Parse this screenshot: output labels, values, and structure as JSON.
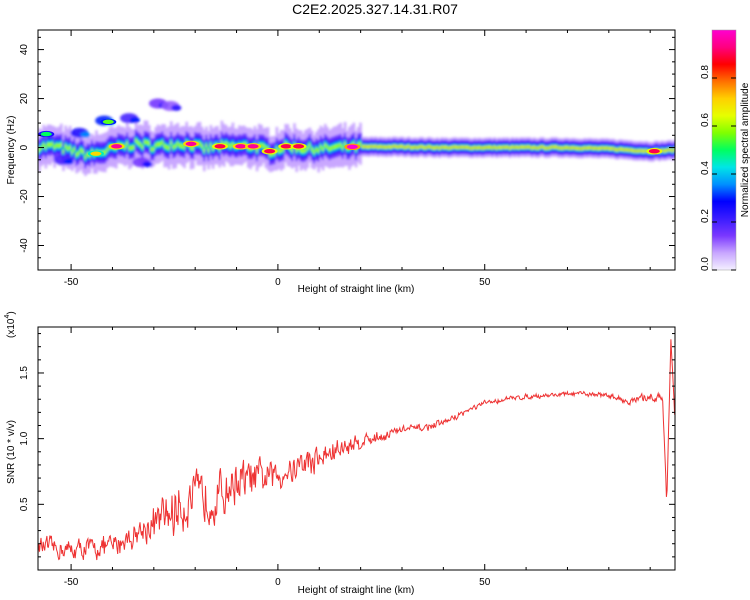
{
  "figure": {
    "title": "C2E2.2025.327.14.31.R07"
  },
  "chart_data": [
    {
      "type": "heatmap",
      "xlabel": "Height of straight line (km)",
      "ylabel": "Frequency (Hz)",
      "xlim": [
        -58,
        96
      ],
      "ylim": [
        -50,
        48
      ],
      "xticks": [
        -50,
        0,
        50
      ],
      "yticks": [
        -40,
        -20,
        0,
        20,
        40
      ],
      "colorbar": {
        "label": "Normalized spectral amplitude",
        "range": [
          0.0,
          1.0
        ],
        "ticks": [
          0.0,
          0.2,
          0.4,
          0.6,
          0.8
        ],
        "colors": [
          "#f4f0ff",
          "#c8a6ff",
          "#7a38ff",
          "#3a1cff",
          "#0000ff",
          "#0090ff",
          "#00e6e6",
          "#00ff60",
          "#80ff00",
          "#e6ff00",
          "#ffd000",
          "#ff7000",
          "#ff0000",
          "#ff0080",
          "#ff00d0"
        ]
      },
      "ridge": [
        {
          "x": -58,
          "y": 0.5
        },
        {
          "x": -54,
          "y": 0.5
        },
        {
          "x": -50,
          "y": -1.5
        },
        {
          "x": -46,
          "y": -3
        },
        {
          "x": -42,
          "y": -1.5
        },
        {
          "x": -38,
          "y": 0.5
        },
        {
          "x": -34,
          "y": 1.5
        },
        {
          "x": -30,
          "y": 0.5
        },
        {
          "x": -26,
          "y": 1.5
        },
        {
          "x": -22,
          "y": 1.5
        },
        {
          "x": -18,
          "y": -0.5
        },
        {
          "x": -14,
          "y": 0.5
        },
        {
          "x": -10,
          "y": 0.5
        },
        {
          "x": -6,
          "y": 0.5
        },
        {
          "x": -2,
          "y": -1.5
        },
        {
          "x": 2,
          "y": 0.5
        },
        {
          "x": 6,
          "y": -0.5
        },
        {
          "x": 10,
          "y": -0.5
        },
        {
          "x": 14,
          "y": 0.0
        },
        {
          "x": 20,
          "y": 0.3
        },
        {
          "x": 30,
          "y": 0.3
        },
        {
          "x": 40,
          "y": 0.0
        },
        {
          "x": 50,
          "y": 0.0
        },
        {
          "x": 60,
          "y": 0.0
        },
        {
          "x": 70,
          "y": 0.0
        },
        {
          "x": 80,
          "y": -0.5
        },
        {
          "x": 90,
          "y": -1.5
        },
        {
          "x": 96,
          "y": -1.0
        }
      ],
      "hotspots": [
        {
          "x": -39,
          "y": 0.5,
          "amp": 0.95
        },
        {
          "x": -21,
          "y": 1.5,
          "amp": 0.95
        },
        {
          "x": -14,
          "y": 0.5,
          "amp": 0.9
        },
        {
          "x": -9,
          "y": 0.5,
          "amp": 0.95
        },
        {
          "x": -6,
          "y": 0.5,
          "amp": 0.95
        },
        {
          "x": -2,
          "y": -1.5,
          "amp": 0.9
        },
        {
          "x": 2,
          "y": 0.5,
          "amp": 0.9
        },
        {
          "x": 5,
          "y": 0.5,
          "amp": 0.9
        },
        {
          "x": 18,
          "y": 0.3,
          "amp": 1.0
        },
        {
          "x": 91,
          "y": -1.5,
          "amp": 0.9
        },
        {
          "x": -44,
          "y": -2.5,
          "amp": 0.7
        },
        {
          "x": -41,
          "y": 10.5,
          "amp": 0.55
        },
        {
          "x": -56,
          "y": 5.5,
          "amp": 0.5
        }
      ],
      "scatter_patches": [
        {
          "x": -42,
          "y": 11,
          "amp": 0.3
        },
        {
          "x": -36,
          "y": 12,
          "amp": 0.2
        },
        {
          "x": -29,
          "y": 18,
          "amp": 0.15
        },
        {
          "x": -26,
          "y": 17,
          "amp": 0.12
        },
        {
          "x": -48,
          "y": 6,
          "amp": 0.25
        },
        {
          "x": -52,
          "y": -5,
          "amp": 0.2
        },
        {
          "x": -33,
          "y": -6,
          "amp": 0.15
        }
      ]
    },
    {
      "type": "line",
      "xlabel": "Height of straight line (km)",
      "ylabel": "SNR (10 * v/v)",
      "yscale_label": "(x10^4)",
      "xlim": [
        -58,
        96
      ],
      "ylim": [
        0.0,
        1.85
      ],
      "xticks": [
        -50,
        0,
        50
      ],
      "yticks": [
        0.5,
        1.0,
        1.5
      ],
      "series": [
        {
          "name": "SNR",
          "color": "#ee3333",
          "trend": [
            {
              "x": -58,
              "y": 0.18
            },
            {
              "x": -50,
              "y": 0.15
            },
            {
              "x": -40,
              "y": 0.18
            },
            {
              "x": -30,
              "y": 0.35
            },
            {
              "x": -25,
              "y": 0.45
            },
            {
              "x": -20,
              "y": 0.55
            },
            {
              "x": -15,
              "y": 0.55
            },
            {
              "x": -10,
              "y": 0.68
            },
            {
              "x": 0,
              "y": 0.72
            },
            {
              "x": 5,
              "y": 0.8
            },
            {
              "x": 10,
              "y": 0.85
            },
            {
              "x": 15,
              "y": 0.92
            },
            {
              "x": 20,
              "y": 0.98
            },
            {
              "x": 25,
              "y": 1.02
            },
            {
              "x": 30,
              "y": 1.07
            },
            {
              "x": 35,
              "y": 1.08
            },
            {
              "x": 40,
              "y": 1.12
            },
            {
              "x": 45,
              "y": 1.2
            },
            {
              "x": 50,
              "y": 1.27
            },
            {
              "x": 55,
              "y": 1.3
            },
            {
              "x": 60,
              "y": 1.32
            },
            {
              "x": 65,
              "y": 1.33
            },
            {
              "x": 70,
              "y": 1.34
            },
            {
              "x": 75,
              "y": 1.34
            },
            {
              "x": 80,
              "y": 1.33
            },
            {
              "x": 85,
              "y": 1.28
            },
            {
              "x": 90,
              "y": 1.32
            },
            {
              "x": 93,
              "y": 1.3
            },
            {
              "x": 94,
              "y": 0.52
            },
            {
              "x": 95,
              "y": 1.75
            },
            {
              "x": 96,
              "y": 1.15
            }
          ],
          "noise": [
            {
              "x": -58,
              "amp": 0.12
            },
            {
              "x": -35,
              "amp": 0.15
            },
            {
              "x": -25,
              "amp": 0.3
            },
            {
              "x": -15,
              "amp": 0.3
            },
            {
              "x": 0,
              "amp": 0.18
            },
            {
              "x": 10,
              "amp": 0.18
            },
            {
              "x": 20,
              "amp": 0.1
            },
            {
              "x": 30,
              "amp": 0.05
            },
            {
              "x": 50,
              "amp": 0.03
            },
            {
              "x": 80,
              "amp": 0.03
            },
            {
              "x": 92,
              "amp": 0.06
            },
            {
              "x": 96,
              "amp": 0.06
            }
          ]
        }
      ]
    }
  ]
}
